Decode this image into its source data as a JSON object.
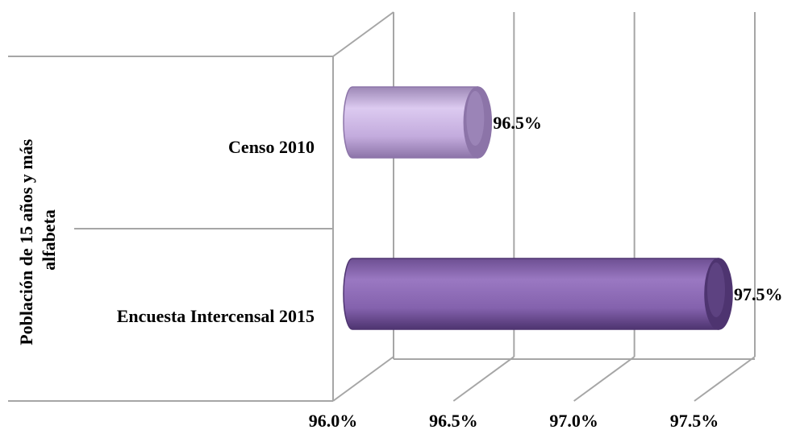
{
  "chart_data": {
    "type": "bar",
    "orientation": "horizontal",
    "style": "3d-cylinder",
    "categories": [
      "Censo 2010",
      "Encuesta Intercensal 2015"
    ],
    "values": [
      96.5,
      97.5
    ],
    "data_labels": [
      "96.5%",
      "97.5%"
    ],
    "ylabel_lines": [
      "Población de 15 años y más",
      "alfabeta"
    ],
    "xlabel": "",
    "title": "",
    "xlim": [
      96.0,
      97.5
    ],
    "xticks": [
      "96.0%",
      "96.5%",
      "97.0%",
      "97.5%"
    ],
    "grid": true,
    "legend": "none",
    "colors": {
      "censo_body": "#c9b3e2",
      "censo_dark": "#8c74a8",
      "encuesta_body": "#8d6ab4",
      "encuesta_dark": "#4e3470",
      "gridline": "#a6a6a6",
      "text": "#000000"
    }
  }
}
